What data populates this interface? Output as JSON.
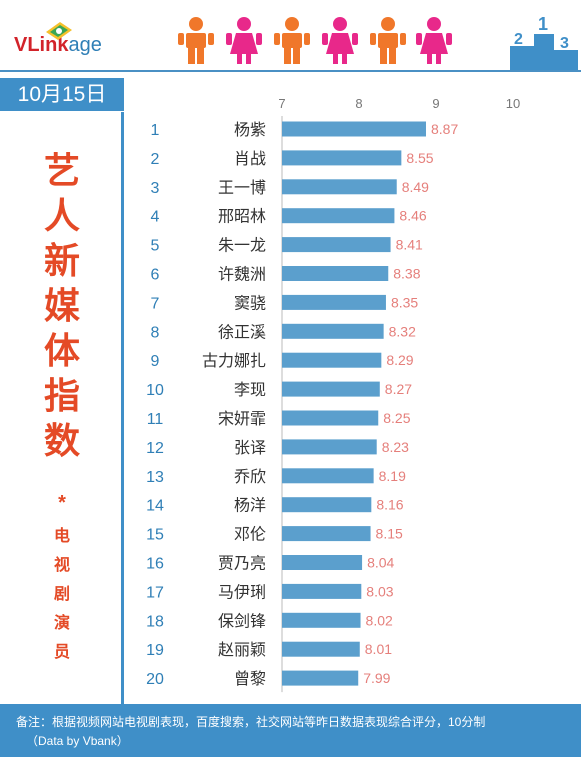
{
  "brand": {
    "prefix": "V",
    "mid": "Link",
    "suffix": "age"
  },
  "date": "10月15日",
  "title_chars": [
    "艺",
    "人",
    "新",
    "媒",
    "体",
    "指",
    "数"
  ],
  "star": "*",
  "subtitle_chars": [
    "电",
    "视",
    "剧",
    "演",
    "员"
  ],
  "footer": {
    "note": "备注：根据视频网站电视剧表现，百度搜索，社交网站等昨日数据表现综合评分，10分制",
    "source": "（Data by Vbank）"
  },
  "colors": {
    "bar": "#5b9fcd",
    "accent": "#e44a26",
    "rank": "#2f7fb6",
    "value": "#e57f7b",
    "male": "#f0772a",
    "female": "#e8288a"
  },
  "chart_data": {
    "type": "bar",
    "orientation": "horizontal",
    "xlim": [
      7,
      10
    ],
    "xticks": [
      "7",
      "8",
      "9",
      "10"
    ],
    "ranks": [
      "1",
      "2",
      "3",
      "4",
      "5",
      "6",
      "7",
      "8",
      "9",
      "10",
      "11",
      "12",
      "13",
      "14",
      "15",
      "16",
      "17",
      "18",
      "19",
      "20"
    ],
    "categories": [
      "杨紫",
      "肖战",
      "王一博",
      "邢昭林",
      "朱一龙",
      "许魏洲",
      "窦骁",
      "徐正溪",
      "古力娜扎",
      "李现",
      "宋妍霏",
      "张译",
      "乔欣",
      "杨洋",
      "邓伦",
      "贾乃亮",
      "马伊琍",
      "保剑锋",
      "赵丽颖",
      "曾黎"
    ],
    "values": [
      8.87,
      8.55,
      8.49,
      8.46,
      8.41,
      8.38,
      8.35,
      8.32,
      8.29,
      8.27,
      8.25,
      8.23,
      8.19,
      8.16,
      8.15,
      8.04,
      8.03,
      8.02,
      8.01,
      7.99
    ],
    "value_labels": [
      "8.87",
      "8.55",
      "8.49",
      "8.46",
      "8.41",
      "8.38",
      "8.35",
      "8.32",
      "8.29",
      "8.27",
      "8.25",
      "8.23",
      "8.19",
      "8.16",
      "8.15",
      "8.04",
      "8.03",
      "8.02",
      "8.01",
      "7.99"
    ]
  }
}
